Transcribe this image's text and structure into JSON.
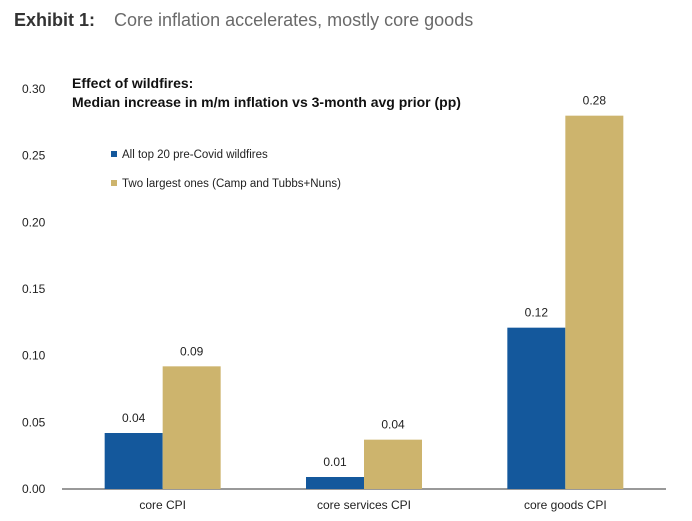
{
  "header": {
    "label": "Exhibit 1:",
    "title": "Core inflation accelerates, mostly core goods"
  },
  "chart_data": {
    "type": "bar",
    "title": "Effect of wildfires:",
    "subtitle": "Median increase in m/m inflation vs 3-month avg prior (pp)",
    "xlabel": "",
    "ylabel": "",
    "categories": [
      "core CPI",
      "core services CPI",
      "core goods CPI"
    ],
    "series": [
      {
        "name": "All top 20 pre-Covid wildfires",
        "color": "#14589c",
        "values": [
          0.042,
          0.009,
          0.121
        ],
        "labels": [
          "0.04",
          "0.01",
          "0.12"
        ]
      },
      {
        "name": "Two largest ones (Camp and Tubbs+Nuns)",
        "color": "#cdb46d",
        "values": [
          0.092,
          0.037,
          0.28
        ],
        "labels": [
          "0.09",
          "0.04",
          "0.28"
        ]
      }
    ],
    "ylim": [
      0,
      0.3
    ],
    "yticks": [
      "0.00",
      "0.05",
      "0.10",
      "0.15",
      "0.20",
      "0.25",
      "0.30"
    ],
    "grid": false,
    "legend_position": "top-left"
  }
}
